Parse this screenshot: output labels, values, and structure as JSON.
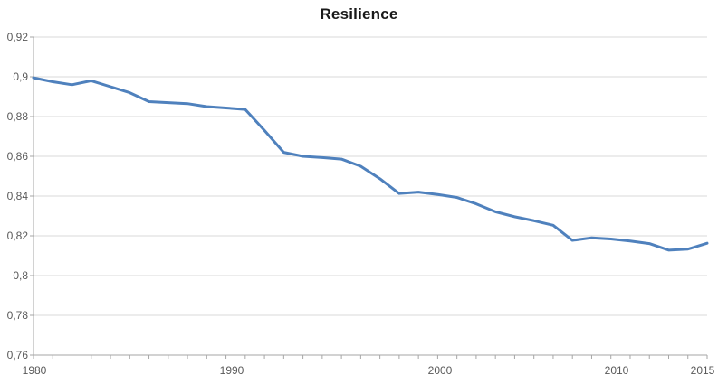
{
  "chart_data": {
    "type": "line",
    "title": "Resilience",
    "x": [
      1980,
      1981,
      1982,
      1983,
      1984,
      1985,
      1986,
      1987,
      1988,
      1989,
      1990,
      1991,
      1992,
      1993,
      1994,
      1995,
      1996,
      1997,
      1998,
      1999,
      2000,
      2001,
      2002,
      2003,
      2004,
      2005,
      2006,
      2007,
      2008,
      2009,
      2010,
      2011,
      2012,
      2013,
      2014,
      2015
    ],
    "series": [
      {
        "name": "Resilience",
        "values": [
          0.8995,
          0.8975,
          0.896,
          0.898,
          0.895,
          0.892,
          0.8875,
          0.887,
          0.8865,
          0.885,
          0.8843,
          0.8836,
          0.873,
          0.862,
          0.86,
          0.8594,
          0.8586,
          0.855,
          0.8487,
          0.8413,
          0.842,
          0.8408,
          0.8393,
          0.8361,
          0.8321,
          0.8296,
          0.8276,
          0.8253,
          0.8177,
          0.819,
          0.8184,
          0.8174,
          0.8161,
          0.8128,
          0.8133,
          0.8163
        ],
        "color": "#4F81BD"
      }
    ],
    "xlabel": "",
    "ylabel": "",
    "xlim": [
      1980,
      2015
    ],
    "ylim": [
      0.76,
      0.92
    ],
    "ytick_step": 0.02,
    "ytick_values": [
      0.92,
      0.9,
      0.88,
      0.86,
      0.84,
      0.82,
      0.8,
      0.78,
      0.76
    ],
    "ytick_labels": [
      "0,92",
      "0,9",
      "0,88",
      "0,86",
      "0,84",
      "0,82",
      "0,8",
      "0,78",
      "0,76"
    ],
    "xtick_years": [
      1980,
      1990,
      2000,
      2010,
      2015
    ],
    "xtick_labels": [
      "1980",
      "1990",
      "2000",
      "2010",
      "2015"
    ],
    "decimal_separator": ",",
    "grid": true,
    "legend": "none"
  },
  "colors": {
    "line": "#4F81BD",
    "gridline": "#D9D9D9",
    "axis": "#A6A6A6",
    "tick": "#A6A6A6",
    "tick_label": "#595959",
    "title": "#1A1A1A",
    "background": "#FFFFFF"
  }
}
